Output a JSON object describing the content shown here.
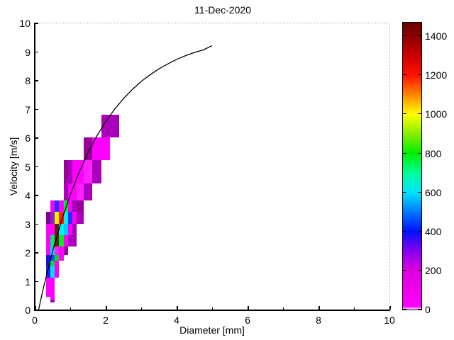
{
  "chart_data": {
    "type": "heatmap",
    "title": "11-Dec-2020",
    "xlabel": "Diameter [mm]",
    "ylabel": "Velocity [m/s]",
    "xlim": [
      0,
      10
    ],
    "ylim": [
      0,
      10
    ],
    "x_major_ticks": [
      0,
      2,
      4,
      6,
      8,
      10
    ],
    "x_minor_ticks": [
      1,
      3,
      5,
      7,
      9
    ],
    "y_ticks": [
      0,
      1,
      2,
      3,
      4,
      5,
      6,
      7,
      8,
      9,
      10
    ],
    "grid": "off",
    "legend": "none",
    "diameter_bin_edges": [
      0.312,
      0.437,
      0.562,
      0.687,
      0.812,
      0.937,
      1.062,
      1.187,
      1.375,
      1.625,
      1.875,
      2.125,
      2.375
    ],
    "velocity_bin_edges": [
      0.25,
      0.35,
      0.45,
      0.55,
      0.65,
      0.75,
      0.85,
      0.95,
      1.1,
      1.3,
      1.5,
      1.7,
      1.9,
      2.2,
      2.6,
      3.0,
      3.4,
      3.8,
      4.4,
      5.2,
      6.0,
      6.8
    ],
    "colorbar": {
      "position": "right",
      "min": 0,
      "max": 1470,
      "ticks": [
        0,
        200,
        400,
        600,
        800,
        1000,
        1200,
        1400
      ],
      "gradient": [
        [
          0.0,
          "#ffffff"
        ],
        [
          0.01,
          "#ff00ff"
        ],
        [
          0.136,
          "#dd00dd"
        ],
        [
          0.204,
          "#8800ee"
        ],
        [
          0.272,
          "#0011ff"
        ],
        [
          0.34,
          "#0077ff"
        ],
        [
          0.408,
          "#00e4ff"
        ],
        [
          0.476,
          "#00ff99"
        ],
        [
          0.544,
          "#00ee00"
        ],
        [
          0.612,
          "#88ee00"
        ],
        [
          0.68,
          "#ffff00"
        ],
        [
          0.748,
          "#ff8800"
        ],
        [
          0.816,
          "#ff1100"
        ],
        [
          0.884,
          "#cc0000"
        ],
        [
          0.952,
          "#8b0000"
        ],
        [
          1.0,
          "#6b0000"
        ]
      ]
    },
    "cells": [
      {
        "d": [
          0.437,
          0.562
        ],
        "v": [
          0.25,
          0.35
        ],
        "value": 150,
        "color": "#aa00bb"
      },
      {
        "d": [
          0.312,
          0.437
        ],
        "v": [
          0.45,
          0.55
        ],
        "value": 60,
        "color": "#ff00ff"
      },
      {
        "d": [
          0.312,
          0.437
        ],
        "v": [
          0.55,
          0.65
        ],
        "value": 60,
        "color": "#ff00ff"
      },
      {
        "d": [
          0.312,
          0.437
        ],
        "v": [
          0.65,
          0.75
        ],
        "value": 60,
        "color": "#ff00ff"
      },
      {
        "d": [
          0.312,
          0.437
        ],
        "v": [
          0.75,
          0.85
        ],
        "value": 60,
        "color": "#ff00ff"
      },
      {
        "d": [
          0.312,
          0.437
        ],
        "v": [
          0.85,
          0.95
        ],
        "value": 60,
        "color": "#ff00ff"
      },
      {
        "d": [
          0.312,
          0.437
        ],
        "v": [
          0.95,
          1.1
        ],
        "value": 70,
        "color": "#ff00ff"
      },
      {
        "d": [
          0.437,
          0.562
        ],
        "v": [
          0.35,
          0.45
        ],
        "value": 80,
        "color": "#ff00ff"
      },
      {
        "d": [
          0.437,
          0.562
        ],
        "v": [
          0.45,
          0.55
        ],
        "value": 80,
        "color": "#ff00ff"
      },
      {
        "d": [
          0.437,
          0.562
        ],
        "v": [
          0.55,
          0.65
        ],
        "value": 80,
        "color": "#ff00ff"
      },
      {
        "d": [
          0.437,
          0.562
        ],
        "v": [
          0.65,
          0.75
        ],
        "value": 80,
        "color": "#ff00ff"
      },
      {
        "d": [
          0.437,
          0.562
        ],
        "v": [
          0.75,
          0.85
        ],
        "value": 80,
        "color": "#ff00ff"
      },
      {
        "d": [
          0.437,
          0.562
        ],
        "v": [
          0.85,
          0.95
        ],
        "value": 80,
        "color": "#ff00ff"
      },
      {
        "d": [
          0.437,
          0.562
        ],
        "v": [
          0.95,
          1.1
        ],
        "value": 90,
        "color": "#ff00ff"
      },
      {
        "d": [
          0.312,
          0.437
        ],
        "v": [
          1.1,
          1.3
        ],
        "value": 350,
        "color": "#2222ee"
      },
      {
        "d": [
          0.437,
          0.562
        ],
        "v": [
          1.1,
          1.3
        ],
        "value": 520,
        "color": "#00ddff"
      },
      {
        "d": [
          0.562,
          0.687
        ],
        "v": [
          1.1,
          1.3
        ],
        "value": 60,
        "color": "#ff00ff"
      },
      {
        "d": [
          0.312,
          0.437
        ],
        "v": [
          1.3,
          1.5
        ],
        "value": 350,
        "color": "#2222ee"
      },
      {
        "d": [
          0.437,
          0.562
        ],
        "v": [
          1.3,
          1.5
        ],
        "value": 540,
        "color": "#00ddff"
      },
      {
        "d": [
          0.562,
          0.687
        ],
        "v": [
          1.3,
          1.5
        ],
        "value": 60,
        "color": "#ff00ff"
      },
      {
        "d": [
          0.312,
          0.437
        ],
        "v": [
          1.5,
          1.7
        ],
        "value": 380,
        "color": "#1111dd"
      },
      {
        "d": [
          0.437,
          0.562
        ],
        "v": [
          1.5,
          1.7
        ],
        "value": 680,
        "color": "#00dd44"
      },
      {
        "d": [
          0.562,
          0.687
        ],
        "v": [
          1.5,
          1.7
        ],
        "value": 80,
        "color": "#ff00ff"
      },
      {
        "d": [
          0.312,
          0.437
        ],
        "v": [
          1.7,
          1.9
        ],
        "value": 380,
        "color": "#1111dd"
      },
      {
        "d": [
          0.437,
          0.562
        ],
        "v": [
          1.7,
          1.9
        ],
        "value": 420,
        "color": "#2244ff"
      },
      {
        "d": [
          0.562,
          0.687
        ],
        "v": [
          1.7,
          1.9
        ],
        "value": 720,
        "color": "#00dd22"
      },
      {
        "d": [
          0.687,
          0.812
        ],
        "v": [
          1.7,
          1.9
        ],
        "value": 70,
        "color": "#ff00ff"
      },
      {
        "d": [
          0.312,
          0.437
        ],
        "v": [
          1.9,
          2.2
        ],
        "value": 70,
        "color": "#ff00ff"
      },
      {
        "d": [
          0.437,
          0.562
        ],
        "v": [
          1.9,
          2.2
        ],
        "value": 540,
        "color": "#00ddff"
      },
      {
        "d": [
          0.562,
          0.687
        ],
        "v": [
          1.9,
          2.2
        ],
        "value": 90,
        "color": "#ff22ff"
      },
      {
        "d": [
          0.687,
          0.812
        ],
        "v": [
          1.9,
          2.2
        ],
        "value": 80,
        "color": "#ff00ff"
      },
      {
        "d": [
          0.812,
          0.937
        ],
        "v": [
          1.9,
          2.2
        ],
        "value": 150,
        "color": "#990099"
      },
      {
        "d": [
          0.312,
          0.437
        ],
        "v": [
          2.2,
          2.6
        ],
        "value": 70,
        "color": "#ff00ff"
      },
      {
        "d": [
          0.437,
          0.562
        ],
        "v": [
          2.2,
          2.6
        ],
        "value": 650,
        "color": "#00ee66"
      },
      {
        "d": [
          0.562,
          0.687
        ],
        "v": [
          2.2,
          2.6
        ],
        "value": 1430,
        "color": "#6e1a08"
      },
      {
        "d": [
          0.687,
          0.812
        ],
        "v": [
          2.2,
          2.6
        ],
        "value": 780,
        "color": "#00ee22"
      },
      {
        "d": [
          0.812,
          0.937
        ],
        "v": [
          2.2,
          2.6
        ],
        "value": 90,
        "color": "#ff00ff"
      },
      {
        "d": [
          0.937,
          1.062
        ],
        "v": [
          2.2,
          2.6
        ],
        "value": 170,
        "color": "#aa00bb"
      },
      {
        "d": [
          1.062,
          1.187
        ],
        "v": [
          2.2,
          2.6
        ],
        "value": 150,
        "color": "#aa00bb"
      },
      {
        "d": [
          0.312,
          0.437
        ],
        "v": [
          2.6,
          3.0
        ],
        "value": 60,
        "color": "#ff00ff"
      },
      {
        "d": [
          0.437,
          0.562
        ],
        "v": [
          2.6,
          3.0
        ],
        "value": 90,
        "color": "#ff00ff"
      },
      {
        "d": [
          0.562,
          0.687
        ],
        "v": [
          2.6,
          3.0
        ],
        "value": 1450,
        "color": "#6e1a08"
      },
      {
        "d": [
          0.687,
          0.812
        ],
        "v": [
          2.6,
          3.0
        ],
        "value": 560,
        "color": "#00eeff"
      },
      {
        "d": [
          0.812,
          0.937
        ],
        "v": [
          2.6,
          3.0
        ],
        "value": 480,
        "color": "#00ccff"
      },
      {
        "d": [
          0.937,
          1.062
        ],
        "v": [
          2.6,
          3.0
        ],
        "value": 90,
        "color": "#ff00ff"
      },
      {
        "d": [
          1.062,
          1.187
        ],
        "v": [
          2.6,
          3.0
        ],
        "value": 160,
        "color": "#aa00bb"
      },
      {
        "d": [
          0.312,
          0.437
        ],
        "v": [
          3.0,
          3.4
        ],
        "value": 150,
        "color": "#880099"
      },
      {
        "d": [
          0.437,
          0.562
        ],
        "v": [
          3.0,
          3.4
        ],
        "value": 280,
        "color": "#8822cc"
      },
      {
        "d": [
          0.562,
          0.687
        ],
        "v": [
          3.0,
          3.4
        ],
        "value": 1000,
        "color": "#ffee00"
      },
      {
        "d": [
          0.687,
          0.812
        ],
        "v": [
          3.0,
          3.4
        ],
        "value": 1210,
        "color": "#ff2200"
      },
      {
        "d": [
          0.812,
          0.937
        ],
        "v": [
          3.0,
          3.4
        ],
        "value": 560,
        "color": "#00eeff"
      },
      {
        "d": [
          0.937,
          1.062
        ],
        "v": [
          3.0,
          3.4
        ],
        "value": 400,
        "color": "#2233ff"
      },
      {
        "d": [
          1.062,
          1.187
        ],
        "v": [
          3.0,
          3.4
        ],
        "value": 80,
        "color": "#ff00ff"
      },
      {
        "d": [
          1.187,
          1.375
        ],
        "v": [
          3.0,
          3.4
        ],
        "value": 140,
        "color": "#aa00bb"
      },
      {
        "d": [
          0.437,
          0.562
        ],
        "v": [
          3.4,
          3.8
        ],
        "value": 60,
        "color": "#ff00ff"
      },
      {
        "d": [
          0.562,
          0.687
        ],
        "v": [
          3.4,
          3.8
        ],
        "value": 360,
        "color": "#2233ff"
      },
      {
        "d": [
          0.687,
          0.812
        ],
        "v": [
          3.4,
          3.8
        ],
        "value": 80,
        "color": "#ff00ff"
      },
      {
        "d": [
          0.812,
          0.937
        ],
        "v": [
          3.4,
          3.8
        ],
        "value": 700,
        "color": "#00ee22"
      },
      {
        "d": [
          0.937,
          1.062
        ],
        "v": [
          3.4,
          3.8
        ],
        "value": 90,
        "color": "#ff00ff"
      },
      {
        "d": [
          1.062,
          1.187
        ],
        "v": [
          3.4,
          3.8
        ],
        "value": 150,
        "color": "#aa00bb"
      },
      {
        "d": [
          1.187,
          1.375
        ],
        "v": [
          3.4,
          3.8
        ],
        "value": 160,
        "color": "#990099"
      },
      {
        "d": [
          0.812,
          0.937
        ],
        "v": [
          3.8,
          4.4
        ],
        "value": 140,
        "color": "#aa00bb"
      },
      {
        "d": [
          0.937,
          1.062
        ],
        "v": [
          3.8,
          4.4
        ],
        "value": 90,
        "color": "#ff00ff"
      },
      {
        "d": [
          1.062,
          1.187
        ],
        "v": [
          3.8,
          4.4
        ],
        "value": 100,
        "color": "#ff00ff"
      },
      {
        "d": [
          1.187,
          1.375
        ],
        "v": [
          3.8,
          4.4
        ],
        "value": 100,
        "color": "#ff22ff"
      },
      {
        "d": [
          1.375,
          1.625
        ],
        "v": [
          3.8,
          4.4
        ],
        "value": 130,
        "color": "#aa00bb"
      },
      {
        "d": [
          0.812,
          0.937
        ],
        "v": [
          4.4,
          5.2
        ],
        "value": 150,
        "color": "#990099"
      },
      {
        "d": [
          0.937,
          1.062
        ],
        "v": [
          4.4,
          5.2
        ],
        "value": 130,
        "color": "#aa00bb"
      },
      {
        "d": [
          1.062,
          1.187
        ],
        "v": [
          4.4,
          5.2
        ],
        "value": 90,
        "color": "#ff00ff"
      },
      {
        "d": [
          1.187,
          1.375
        ],
        "v": [
          4.4,
          5.2
        ],
        "value": 110,
        "color": "#ff00ff"
      },
      {
        "d": [
          1.375,
          1.625
        ],
        "v": [
          4.4,
          5.2
        ],
        "value": 110,
        "color": "#ff22ff"
      },
      {
        "d": [
          1.625,
          1.875
        ],
        "v": [
          4.4,
          5.2
        ],
        "value": 150,
        "color": "#aa00bb"
      },
      {
        "d": [
          1.375,
          1.625
        ],
        "v": [
          5.2,
          6.0
        ],
        "value": 170,
        "color": "#990099"
      },
      {
        "d": [
          1.625,
          1.875
        ],
        "v": [
          5.2,
          6.0
        ],
        "value": 100,
        "color": "#ff00ff"
      },
      {
        "d": [
          1.875,
          2.125
        ],
        "v": [
          5.2,
          6.0
        ],
        "value": 100,
        "color": "#ff00ff"
      },
      {
        "d": [
          1.875,
          2.125
        ],
        "v": [
          6.0,
          6.8
        ],
        "value": 170,
        "color": "#aa00bb"
      },
      {
        "d": [
          2.125,
          2.375
        ],
        "v": [
          6.0,
          6.8
        ],
        "value": 170,
        "color": "#aa00bb"
      }
    ],
    "curve": {
      "name": "terminal-velocity-curve",
      "color": "#000000",
      "points": [
        [
          0.11,
          0.0
        ],
        [
          0.25,
          0.79
        ],
        [
          0.5,
          2.02
        ],
        [
          0.75,
          3.08
        ],
        [
          1.0,
          4.0
        ],
        [
          1.25,
          4.78
        ],
        [
          1.5,
          5.46
        ],
        [
          1.75,
          6.05
        ],
        [
          2.0,
          6.55
        ],
        [
          2.25,
          6.98
        ],
        [
          2.5,
          7.35
        ],
        [
          2.75,
          7.67
        ],
        [
          3.0,
          7.95
        ],
        [
          3.25,
          8.18
        ],
        [
          3.5,
          8.39
        ],
        [
          3.75,
          8.56
        ],
        [
          4.0,
          8.72
        ],
        [
          4.25,
          8.85
        ],
        [
          4.5,
          8.96
        ],
        [
          4.75,
          9.05
        ],
        [
          5.0,
          9.2
        ]
      ]
    }
  }
}
